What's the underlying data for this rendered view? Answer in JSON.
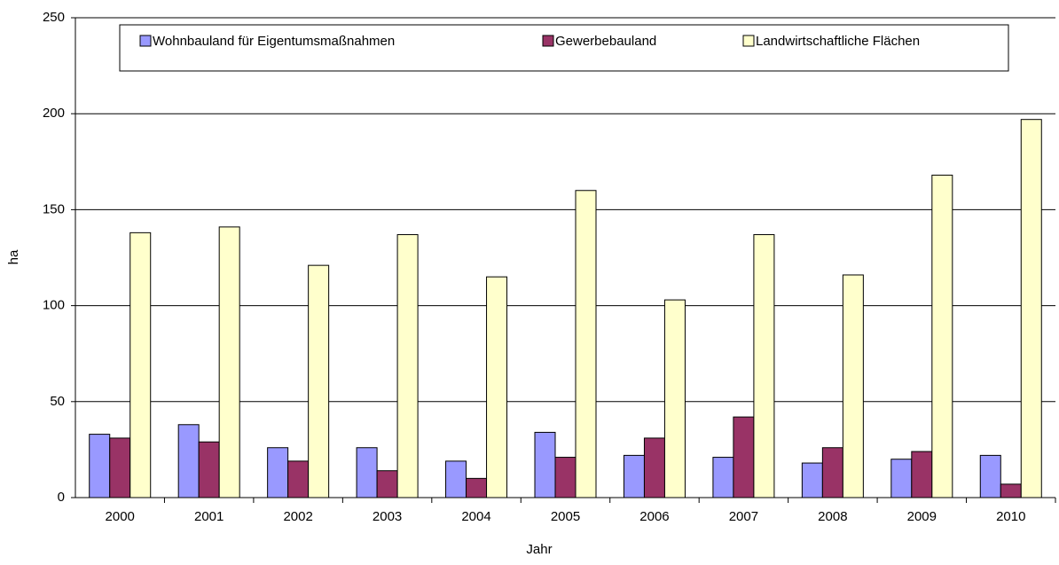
{
  "chart_data": {
    "type": "bar",
    "x_label": "Jahr",
    "y_label": "ha",
    "categories": [
      "2000",
      "2001",
      "2002",
      "2003",
      "2004",
      "2005",
      "2006",
      "2007",
      "2008",
      "2009",
      "2010"
    ],
    "series": [
      {
        "name": "Wohnbauland für Eigentumsmaßnahmen",
        "color": "#9999ff",
        "values": [
          33,
          38,
          26,
          26,
          19,
          34,
          22,
          21,
          18,
          20,
          22
        ]
      },
      {
        "name": "Gewerbebauland",
        "color": "#993366",
        "values": [
          31,
          29,
          19,
          14,
          10,
          21,
          31,
          42,
          26,
          24,
          7
        ]
      },
      {
        "name": "Landwirtschaftliche Flächen",
        "color": "#ffffcc",
        "values": [
          138,
          141,
          121,
          137,
          115,
          160,
          103,
          137,
          116,
          168,
          197
        ]
      }
    ],
    "ylim": [
      0,
      250
    ],
    "yticks": [
      0,
      50,
      100,
      150,
      200,
      250
    ],
    "grid": true,
    "legend": "top"
  }
}
